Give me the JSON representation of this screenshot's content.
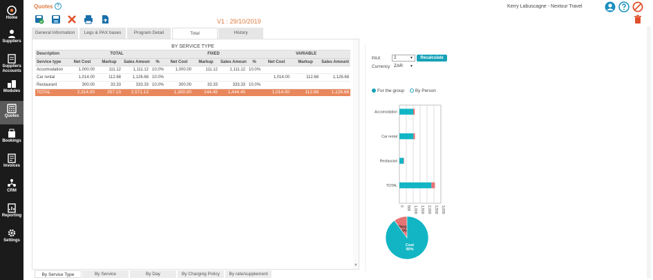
{
  "header": {
    "title": "Quotes",
    "help_glyph": "?",
    "user": "Kerry Labuscagne - Nextour Travel"
  },
  "sidebar": {
    "items": [
      {
        "label": "Home",
        "icon": "home-icon"
      },
      {
        "label": "Suppliers",
        "icon": "suppliers-icon"
      },
      {
        "label": "Suppliers Accounts",
        "icon": "accounts-icon"
      },
      {
        "label": "Modules",
        "icon": "modules-icon"
      },
      {
        "label": "Quotes",
        "icon": "calculator-icon"
      },
      {
        "label": "Bookings",
        "icon": "bookings-icon"
      },
      {
        "label": "Invoices",
        "icon": "invoice-icon"
      },
      {
        "label": "CRM",
        "icon": "crm-icon"
      },
      {
        "label": "Reporting",
        "icon": "reporting-icon"
      },
      {
        "label": "Settings",
        "icon": "settings-icon"
      }
    ]
  },
  "toolbar": {
    "version": "V1 : 29/10/2019"
  },
  "tabs": [
    {
      "label": "General Information",
      "active": false
    },
    {
      "label": "Legs & PAX bases",
      "active": false
    },
    {
      "label": "Program Detail",
      "active": false
    },
    {
      "label": "Total",
      "active": true
    },
    {
      "label": "History",
      "active": false
    }
  ],
  "report": {
    "title": "BY SERVICE TYPE",
    "groups": {
      "description": "Description",
      "total": "TOTAL",
      "fixed": "FIXED",
      "variable": "VARIABLE"
    },
    "columns": [
      "Service type",
      "Net Cost",
      "Markup",
      "Sales Amount",
      "%",
      "Net Cost",
      "Markup",
      "Sales Amount",
      "%",
      "Net Cost",
      "Markup",
      "Sales Amount"
    ],
    "rows": [
      [
        "Accomodation",
        "1,000.00",
        "111.12",
        "1,111.12",
        "10.0%",
        "1,000.00",
        "111.12",
        "1,111.12",
        "10.0%",
        "",
        "",
        ""
      ],
      [
        "Car rental",
        "1,014.00",
        "112.68",
        "1,126.68",
        "10.0%",
        "",
        "",
        "",
        "",
        "1,014.00",
        "112.68",
        "1,126.68"
      ],
      [
        "Restaurant",
        "300.00",
        "33.33",
        "333.33",
        "10.0%",
        "300.00",
        "33.33",
        "333.33",
        "10.0%",
        "",
        "",
        ""
      ]
    ],
    "total": [
      "TOTAL",
      "2,314.00",
      "257.13",
      "2,571.13",
      "",
      "1,300.00",
      "144.45",
      "1,444.45",
      "",
      "1,014.00",
      "112.68",
      "1,126.68"
    ]
  },
  "bottom_tabs": [
    {
      "label": "By Service Type",
      "active": true
    },
    {
      "label": "By Service",
      "active": false
    },
    {
      "label": "By Day",
      "active": false
    },
    {
      "label": "By Charging Policy",
      "active": false
    },
    {
      "label": "By rate/supplement",
      "active": false
    }
  ],
  "controls": {
    "pax_label": "PAX",
    "pax_value": "2",
    "currency_label": "Currency",
    "currency_value": "ZAR",
    "recalculate_label": "Recalculate",
    "radio_group": "For the group",
    "radio_person": "By Person",
    "selected": "group"
  },
  "colors": {
    "accent": "#e07a3e",
    "teal": "#17a2b8",
    "salmon": "#e8875b",
    "pink": "#e57373",
    "cost": "#12b5c4"
  },
  "chart_data": [
    {
      "type": "bar",
      "orientation": "horizontal",
      "stacked": true,
      "categories": [
        "Accomodation",
        "Car rental",
        "Restaurant",
        "TOTAL"
      ],
      "series": [
        {
          "name": "Cost",
          "values": [
            1000,
            1014,
            300,
            2314
          ]
        },
        {
          "name": "Margin",
          "values": [
            111.12,
            112.68,
            33.33,
            257.13
          ]
        }
      ],
      "xlim": [
        0,
        3000
      ],
      "xticks": [
        "0",
        "500",
        "1,000",
        "1,500",
        "2,000",
        "2,500",
        "3,000"
      ]
    },
    {
      "type": "pie",
      "slices": [
        {
          "name": "Margin",
          "label": "10%",
          "value": 10
        },
        {
          "name": "Cost",
          "label": "90%",
          "value": 90
        }
      ]
    }
  ]
}
